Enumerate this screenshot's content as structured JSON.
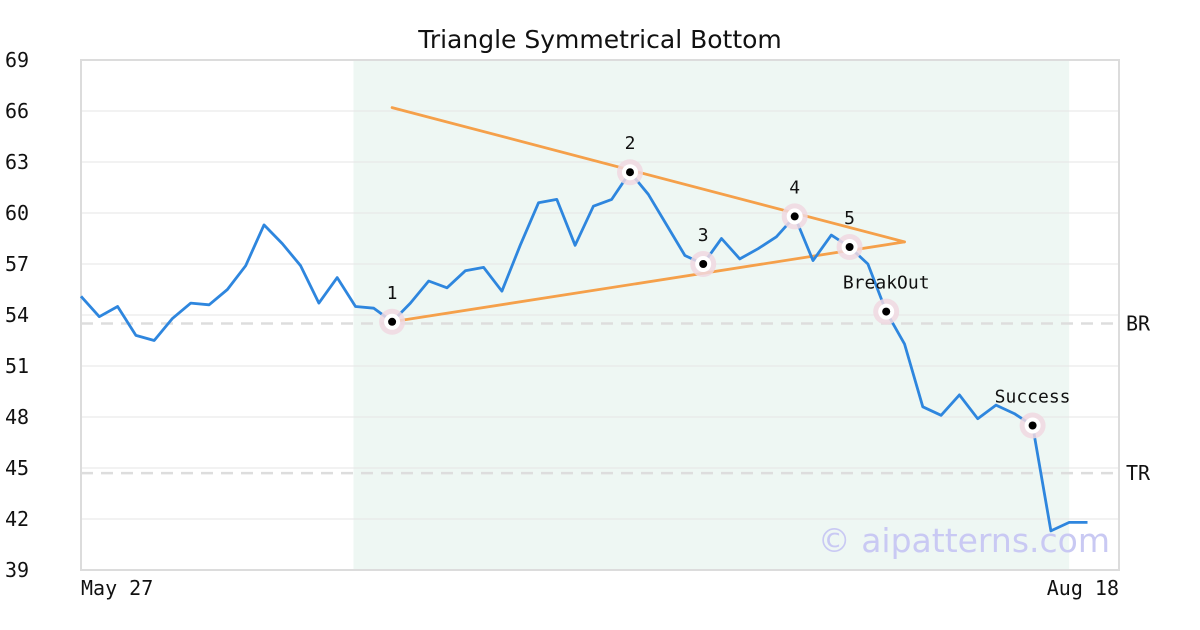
{
  "chart_data": {
    "type": "line",
    "title": "Triangle Symmetrical Bottom",
    "xlabel": "",
    "ylabel": "",
    "ylim": [
      39,
      69
    ],
    "y_ticks": [
      39,
      42,
      45,
      48,
      51,
      54,
      57,
      60,
      63,
      66,
      69
    ],
    "x_tick_labels": [
      "May 27",
      "Aug 18"
    ],
    "grid": true,
    "colors": {
      "price_line": "#2e86de",
      "trend_lines": "#f5a04a",
      "pattern_zone": "#eef7f3",
      "reference_lines": "#dddddd",
      "marker_halo": "#f0d8e0",
      "marker_dot": "#000000",
      "watermark": "#c9c9f3"
    },
    "series": [
      {
        "values": [
          55.1,
          53.9,
          54.5,
          52.8,
          52.5,
          53.8,
          54.7,
          54.6,
          55.5,
          56.9,
          59.3,
          58.2,
          56.9,
          54.7,
          56.2,
          54.5,
          54.4,
          53.6,
          54.7,
          56.0,
          55.6,
          56.6,
          56.8,
          55.4,
          58.1,
          60.6,
          60.8,
          58.1,
          60.4,
          60.8,
          62.4,
          61.1,
          59.3,
          57.5,
          57.0,
          58.5,
          57.3,
          57.9,
          58.6,
          59.8,
          57.2,
          58.7,
          58.0,
          57.0,
          54.2,
          52.3,
          48.6,
          48.1,
          49.3,
          47.9,
          48.7,
          48.2,
          47.5,
          41.3,
          41.8,
          41.8
        ]
      }
    ],
    "pattern_zone": {
      "start_index": 15,
      "end_index": 54
    },
    "trend_lines": [
      {
        "from": {
          "index": 17,
          "value": 66.2
        },
        "to": {
          "index": 45,
          "value": 58.3
        }
      },
      {
        "from": {
          "index": 17,
          "value": 53.6
        },
        "to": {
          "index": 45,
          "value": 58.3
        }
      }
    ],
    "points": [
      {
        "label": "1",
        "index": 17,
        "value": 53.6
      },
      {
        "label": "2",
        "index": 30,
        "value": 62.4
      },
      {
        "label": "3",
        "index": 34,
        "value": 57.0
      },
      {
        "label": "4",
        "index": 39,
        "value": 59.8
      },
      {
        "label": "5",
        "index": 42,
        "value": 58.0
      },
      {
        "label": "BreakOut",
        "index": 44,
        "value": 54.2
      },
      {
        "label": "Success",
        "index": 52,
        "value": 47.5
      }
    ],
    "reference_lines": [
      {
        "label": "BR",
        "value": 53.5
      },
      {
        "label": "TR",
        "value": 44.7
      }
    ],
    "watermark": "© aipatterns.com"
  }
}
